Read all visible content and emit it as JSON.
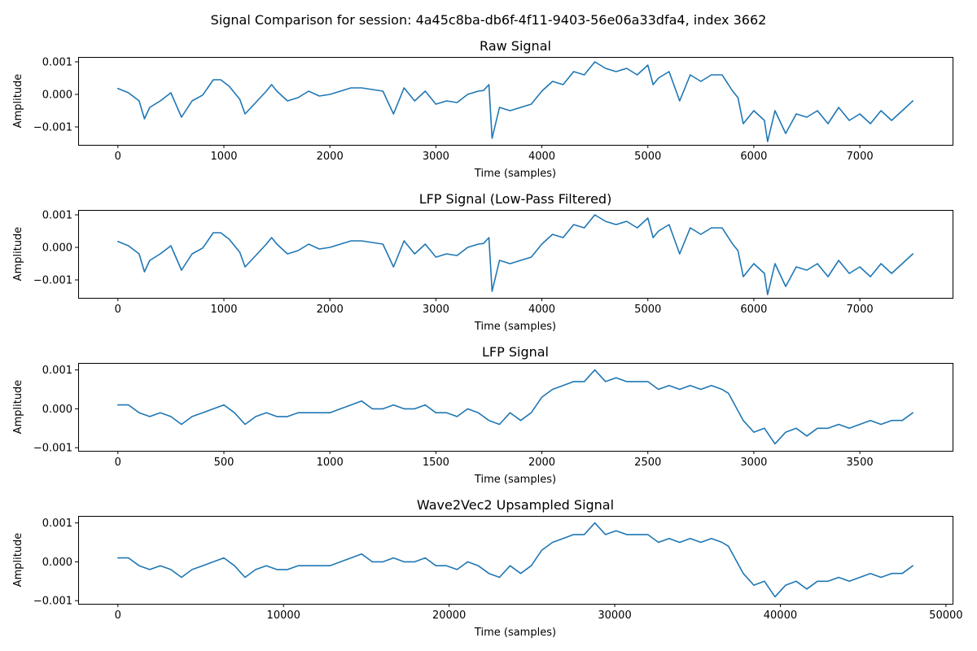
{
  "figure": {
    "suptitle": "Signal Comparison for session: 4a45c8ba-db6f-4f11-9403-56e06a33dfa4, index 3662",
    "line_color": "#1f77b4"
  },
  "chart_data": [
    {
      "type": "line",
      "title": "Raw Signal",
      "xlabel": "Time (samples)",
      "ylabel": "Amplitude",
      "xlim": [
        -375,
        7875
      ],
      "ylim": [
        -0.00155,
        0.00115
      ],
      "xticks": [
        0,
        1000,
        2000,
        3000,
        4000,
        5000,
        6000,
        7000
      ],
      "xtick_labels": [
        "0",
        "1000",
        "2000",
        "3000",
        "4000",
        "5000",
        "6000",
        "7000"
      ],
      "yticks": [
        -0.001,
        0.0,
        0.001
      ],
      "ytick_labels": [
        "−0.001",
        "0.000",
        "0.001"
      ],
      "grid": false,
      "series": [
        {
          "x": [
            0,
            100,
            200,
            250,
            300,
            400,
            500,
            600,
            700,
            800,
            900,
            970,
            1050,
            1150,
            1200,
            1300,
            1400,
            1450,
            1500,
            1600,
            1700,
            1800,
            1900,
            2000,
            2100,
            2200,
            2300,
            2400,
            2500,
            2600,
            2700,
            2800,
            2900,
            3000,
            3100,
            3200,
            3300,
            3400,
            3450,
            3500,
            3530,
            3600,
            3700,
            3800,
            3900,
            4000,
            4100,
            4200,
            4300,
            4400,
            4500,
            4600,
            4700,
            4800,
            4900,
            5000,
            5050,
            5100,
            5200,
            5300,
            5400,
            5500,
            5600,
            5700,
            5800,
            5850,
            5900,
            6000,
            6100,
            6130,
            6200,
            6300,
            6400,
            6500,
            6600,
            6700,
            6800,
            6900,
            7000,
            7100,
            7200,
            7300,
            7400,
            7500
          ],
          "y": [
            0.00018,
            5e-05,
            -0.0002,
            -0.00075,
            -0.0004,
            -0.0002,
            5e-05,
            -0.0007,
            -0.0002,
            -2e-05,
            0.00045,
            0.00045,
            0.00025,
            -0.00015,
            -0.0006,
            -0.00025,
            0.0001,
            0.0003,
            0.0001,
            -0.0002,
            -0.0001,
            0.0001,
            -5e-05,
            0.0,
            0.0001,
            0.0002,
            0.0002,
            0.00015,
            0.0001,
            -0.0006,
            0.0002,
            -0.0002,
            0.0001,
            -0.0003,
            -0.0002,
            -0.00025,
            0.0,
            0.0001,
            0.00012,
            0.0003,
            -0.00135,
            -0.0004,
            -0.0005,
            -0.0004,
            -0.0003,
            0.0001,
            0.0004,
            0.0003,
            0.0007,
            0.0006,
            0.001,
            0.0008,
            0.0007,
            0.0008,
            0.0006,
            0.0009,
            0.0003,
            0.0005,
            0.0007,
            -0.0002,
            0.0006,
            0.0004,
            0.0006,
            0.0006,
            0.0001,
            -0.0001,
            -0.0009,
            -0.0005,
            -0.0008,
            -0.00145,
            -0.0005,
            -0.0012,
            -0.0006,
            -0.0007,
            -0.0005,
            -0.0009,
            -0.0004,
            -0.0008,
            -0.0006,
            -0.0009,
            -0.0005,
            -0.0008,
            -0.0005,
            -0.0002
          ]
        }
      ]
    },
    {
      "type": "line",
      "title": "LFP Signal (Low-Pass Filtered)",
      "xlabel": "Time (samples)",
      "ylabel": "Amplitude",
      "xlim": [
        -375,
        7875
      ],
      "ylim": [
        -0.00155,
        0.00115
      ],
      "xticks": [
        0,
        1000,
        2000,
        3000,
        4000,
        5000,
        6000,
        7000
      ],
      "xtick_labels": [
        "0",
        "1000",
        "2000",
        "3000",
        "4000",
        "5000",
        "6000",
        "7000"
      ],
      "yticks": [
        -0.001,
        0.0,
        0.001
      ],
      "ytick_labels": [
        "−0.001",
        "0.000",
        "0.001"
      ],
      "grid": false,
      "series": [
        {
          "x": [
            0,
            100,
            200,
            250,
            300,
            400,
            500,
            600,
            700,
            800,
            900,
            970,
            1050,
            1150,
            1200,
            1300,
            1400,
            1450,
            1500,
            1600,
            1700,
            1800,
            1900,
            2000,
            2100,
            2200,
            2300,
            2400,
            2500,
            2600,
            2700,
            2800,
            2900,
            3000,
            3100,
            3200,
            3300,
            3400,
            3450,
            3500,
            3530,
            3600,
            3700,
            3800,
            3900,
            4000,
            4100,
            4200,
            4300,
            4400,
            4500,
            4600,
            4700,
            4800,
            4900,
            5000,
            5050,
            5100,
            5200,
            5300,
            5400,
            5500,
            5600,
            5700,
            5800,
            5850,
            5900,
            6000,
            6100,
            6130,
            6200,
            6300,
            6400,
            6500,
            6600,
            6700,
            6800,
            6900,
            7000,
            7100,
            7200,
            7300,
            7400,
            7500
          ],
          "y": [
            0.00018,
            5e-05,
            -0.0002,
            -0.00075,
            -0.0004,
            -0.0002,
            5e-05,
            -0.0007,
            -0.0002,
            -2e-05,
            0.00045,
            0.00045,
            0.00025,
            -0.00015,
            -0.0006,
            -0.00025,
            0.0001,
            0.0003,
            0.0001,
            -0.0002,
            -0.0001,
            0.0001,
            -5e-05,
            0.0,
            0.0001,
            0.0002,
            0.0002,
            0.00015,
            0.0001,
            -0.0006,
            0.0002,
            -0.0002,
            0.0001,
            -0.0003,
            -0.0002,
            -0.00025,
            0.0,
            0.0001,
            0.00012,
            0.0003,
            -0.00135,
            -0.0004,
            -0.0005,
            -0.0004,
            -0.0003,
            0.0001,
            0.0004,
            0.0003,
            0.0007,
            0.0006,
            0.001,
            0.0008,
            0.0007,
            0.0008,
            0.0006,
            0.0009,
            0.0003,
            0.0005,
            0.0007,
            -0.0002,
            0.0006,
            0.0004,
            0.0006,
            0.0006,
            0.0001,
            -0.0001,
            -0.0009,
            -0.0005,
            -0.0008,
            -0.00145,
            -0.0005,
            -0.0012,
            -0.0006,
            -0.0007,
            -0.0005,
            -0.0009,
            -0.0004,
            -0.0008,
            -0.0006,
            -0.0009,
            -0.0005,
            -0.0008,
            -0.0005,
            -0.0002
          ]
        }
      ]
    },
    {
      "type": "line",
      "title": "LFP Signal",
      "xlabel": "Time (samples)",
      "ylabel": "Amplitude",
      "xlim": [
        -187.5,
        3937.5
      ],
      "ylim": [
        -0.00108,
        0.00118
      ],
      "xticks": [
        0,
        500,
        1000,
        1500,
        2000,
        2500,
        3000,
        3500
      ],
      "xtick_labels": [
        "0",
        "500",
        "1000",
        "1500",
        "2000",
        "2500",
        "3000",
        "3500"
      ],
      "yticks": [
        -0.001,
        0.0,
        0.001
      ],
      "ytick_labels": [
        "−0.001",
        "0.000",
        "0.001"
      ],
      "grid": false,
      "series": [
        {
          "x": [
            0,
            50,
            100,
            150,
            200,
            250,
            300,
            350,
            400,
            450,
            500,
            550,
            600,
            650,
            700,
            750,
            800,
            850,
            900,
            950,
            1000,
            1050,
            1100,
            1150,
            1200,
            1250,
            1300,
            1350,
            1400,
            1450,
            1500,
            1550,
            1600,
            1650,
            1700,
            1750,
            1800,
            1850,
            1900,
            1950,
            2000,
            2050,
            2100,
            2150,
            2200,
            2250,
            2300,
            2350,
            2400,
            2450,
            2500,
            2550,
            2600,
            2650,
            2700,
            2750,
            2800,
            2850,
            2880,
            2920,
            2950,
            3000,
            3050,
            3100,
            3150,
            3200,
            3250,
            3300,
            3350,
            3400,
            3450,
            3500,
            3550,
            3600,
            3650,
            3700,
            3750
          ],
          "y": [
            0.0001,
            0.0001,
            -0.0001,
            -0.0002,
            -0.0001,
            -0.0002,
            -0.0004,
            -0.0002,
            -0.0001,
            0.0,
            0.0001,
            -0.0001,
            -0.0004,
            -0.0002,
            -0.0001,
            -0.0002,
            -0.0002,
            -0.0001,
            -0.0001,
            -0.0001,
            -0.0001,
            0.0,
            0.0001,
            0.0002,
            0.0,
            0.0,
            0.0001,
            0.0,
            0.0,
            0.0001,
            -0.0001,
            -0.0001,
            -0.0002,
            0.0,
            -0.0001,
            -0.0003,
            -0.0004,
            -0.0001,
            -0.0003,
            -0.0001,
            0.0003,
            0.0005,
            0.0006,
            0.0007,
            0.0007,
            0.001,
            0.0007,
            0.0008,
            0.0007,
            0.0007,
            0.0007,
            0.0005,
            0.0006,
            0.0005,
            0.0006,
            0.0005,
            0.0006,
            0.0005,
            0.0004,
            0.0,
            -0.0003,
            -0.0006,
            -0.0005,
            -0.0009,
            -0.0006,
            -0.0005,
            -0.0007,
            -0.0005,
            -0.0005,
            -0.0004,
            -0.0005,
            -0.0004,
            -0.0003,
            -0.0004,
            -0.0003,
            -0.0003,
            -0.0001
          ]
        }
      ]
    },
    {
      "type": "line",
      "title": "Wave2Vec2 Upsampled Signal",
      "xlabel": "Time (samples)",
      "ylabel": "Amplitude",
      "xlim": [
        -2400,
        50400
      ],
      "ylim": [
        -0.00108,
        0.00118
      ],
      "xticks": [
        0,
        10000,
        20000,
        30000,
        40000,
        50000
      ],
      "xtick_labels": [
        "0",
        "10000",
        "20000",
        "30000",
        "40000",
        "50000"
      ],
      "yticks": [
        -0.001,
        0.0,
        0.001
      ],
      "ytick_labels": [
        "−0.001",
        "0.000",
        "0.001"
      ],
      "grid": false,
      "series": [
        {
          "x": [
            0,
            640,
            1280,
            1920,
            2560,
            3200,
            3840,
            4480,
            5120,
            5760,
            6400,
            7040,
            7680,
            8320,
            8960,
            9600,
            10240,
            10880,
            11520,
            12160,
            12800,
            13440,
            14080,
            14720,
            15360,
            16000,
            16640,
            17280,
            17920,
            18560,
            19200,
            19840,
            20480,
            21120,
            21760,
            22400,
            23040,
            23680,
            24320,
            24960,
            25600,
            26240,
            26880,
            27520,
            28160,
            28800,
            29440,
            30080,
            30720,
            31360,
            32000,
            32640,
            33280,
            33920,
            34560,
            35200,
            35840,
            36480,
            36864,
            37376,
            37760,
            38400,
            39040,
            39680,
            40320,
            40960,
            41600,
            42240,
            42880,
            43520,
            44160,
            44800,
            45440,
            46080,
            46720,
            47360,
            48000
          ],
          "y": [
            0.0001,
            0.0001,
            -0.0001,
            -0.0002,
            -0.0001,
            -0.0002,
            -0.0004,
            -0.0002,
            -0.0001,
            0.0,
            0.0001,
            -0.0001,
            -0.0004,
            -0.0002,
            -0.0001,
            -0.0002,
            -0.0002,
            -0.0001,
            -0.0001,
            -0.0001,
            -0.0001,
            0.0,
            0.0001,
            0.0002,
            0.0,
            0.0,
            0.0001,
            0.0,
            0.0,
            0.0001,
            -0.0001,
            -0.0001,
            -0.0002,
            0.0,
            -0.0001,
            -0.0003,
            -0.0004,
            -0.0001,
            -0.0003,
            -0.0001,
            0.0003,
            0.0005,
            0.0006,
            0.0007,
            0.0007,
            0.001,
            0.0007,
            0.0008,
            0.0007,
            0.0007,
            0.0007,
            0.0005,
            0.0006,
            0.0005,
            0.0006,
            0.0005,
            0.0006,
            0.0005,
            0.0004,
            0.0,
            -0.0003,
            -0.0006,
            -0.0005,
            -0.0009,
            -0.0006,
            -0.0005,
            -0.0007,
            -0.0005,
            -0.0005,
            -0.0004,
            -0.0005,
            -0.0004,
            -0.0003,
            -0.0004,
            -0.0003,
            -0.0003,
            -0.0001
          ]
        }
      ]
    }
  ]
}
